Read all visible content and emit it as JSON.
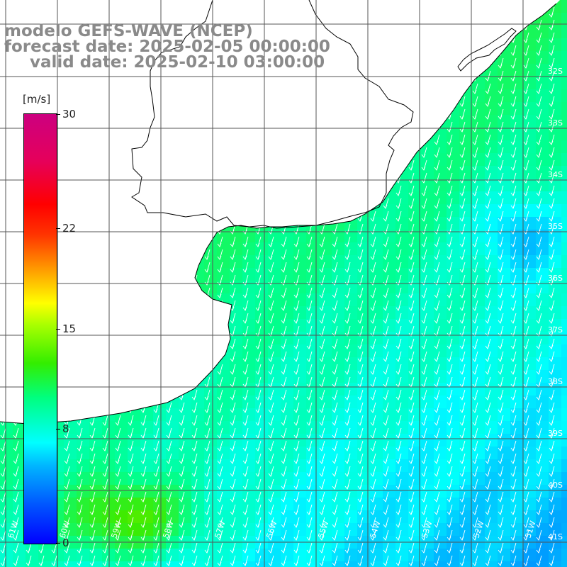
{
  "titles": {
    "line1": "modelo GEFS-WAVE (NCEP)",
    "line2": "forecast date: 2025-02-05 00:00:00",
    "line3": "valid date: 2025-02-10 03:00:00"
  },
  "colorbar": {
    "unit": "[m/s]",
    "ticks": [
      "30",
      "22",
      "15",
      "8",
      "0"
    ],
    "tick_values": [
      30,
      22,
      15,
      8,
      0
    ],
    "range": [
      0,
      30
    ],
    "colors": [
      "#0000ff",
      "#00b4ff",
      "#00ffff",
      "#00ff7f",
      "#33ee00",
      "#ffff00",
      "#ff9900",
      "#ff0000",
      "#cc0080"
    ]
  },
  "map": {
    "lon_labels": [
      "61W",
      "60W",
      "59W",
      "58W",
      "57W",
      "56W",
      "55W",
      "54W",
      "53W",
      "52W",
      "51W"
    ],
    "lat_labels": [
      "32S",
      "33S",
      "34S",
      "35S",
      "36S",
      "37S",
      "38S",
      "39S",
      "40S",
      "41S"
    ],
    "lon_range": [
      -61.0,
      -51.0
    ],
    "lat_range": [
      -41.0,
      -31.0
    ],
    "wind_direction": "arrows pointing toward south-southwest",
    "land_color": "#ffffff",
    "grid": true
  }
}
